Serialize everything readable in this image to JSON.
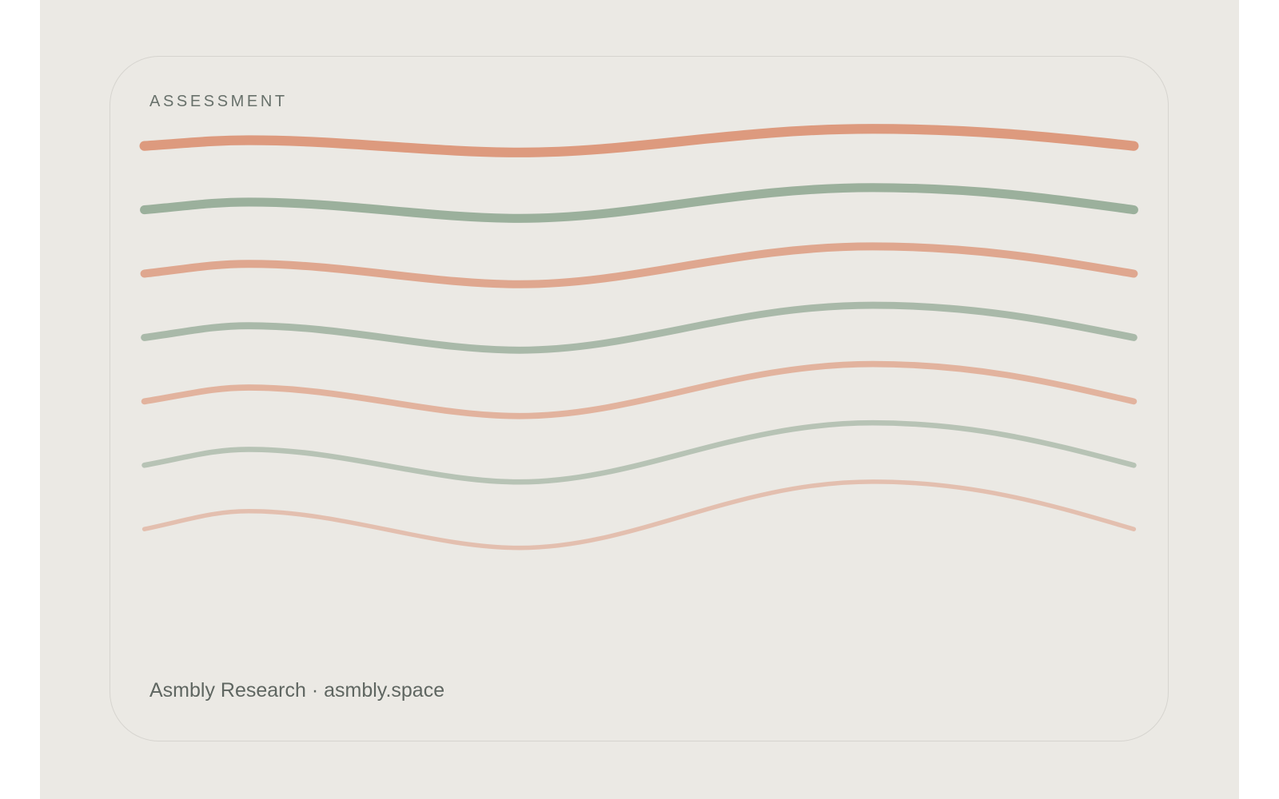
{
  "header": {
    "label": "ASSESSMENT"
  },
  "footer": {
    "text": "Asmbly Research · asmbly.space"
  }
}
